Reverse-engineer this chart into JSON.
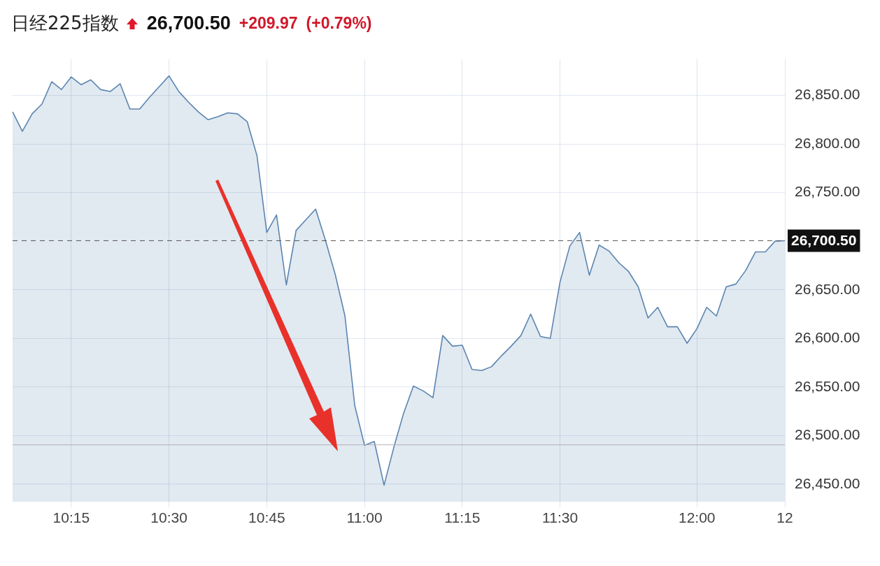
{
  "chart_data": {
    "type": "area",
    "title": "日经225指数",
    "annotations": [
      "26,700.50",
      "+209.97",
      "(+0.79%)"
    ],
    "categories": [
      null,
      null,
      null,
      null,
      null,
      null,
      "10:15",
      null,
      null,
      null,
      null,
      null,
      null,
      null,
      null,
      null,
      "10:30",
      null,
      null,
      null,
      null,
      null,
      null,
      null,
      null,
      null,
      "10:45",
      null,
      null,
      null,
      null,
      null,
      null,
      null,
      null,
      null,
      "11:00",
      null,
      null,
      null,
      null,
      null,
      null,
      null,
      null,
      null,
      "11:15",
      null,
      null,
      null,
      null,
      null,
      null,
      null,
      null,
      null,
      "11:30",
      null,
      null,
      null,
      null,
      null,
      null,
      null,
      null,
      null,
      null,
      null,
      null,
      null,
      "12:00",
      null,
      null,
      null,
      null,
      null,
      null,
      null,
      null,
      "12"
    ],
    "series": [
      {
        "color": "#5b85b0",
        "values": [
          26833,
          26813,
          26831,
          26841,
          26864,
          26856,
          26869,
          26861,
          26866,
          26856,
          26854,
          26862,
          26836,
          26836,
          26848,
          26859,
          26870,
          26854,
          26843,
          26833,
          26825,
          26828,
          26832,
          26831,
          26823,
          26788,
          26709,
          26727,
          26655,
          26711,
          26722,
          26733,
          26701,
          26666,
          26623,
          26531,
          26490,
          26494,
          26449,
          26488,
          26523,
          26551,
          26546,
          26539,
          26603,
          26592,
          26593,
          26568,
          26567,
          26571,
          26582,
          26592,
          26603,
          26625,
          26602,
          26600,
          26658,
          26695,
          26709,
          26665,
          26696,
          26690,
          26678,
          26669,
          26653,
          26621,
          26632,
          26612,
          26612,
          26595,
          26610,
          26632,
          26623,
          26653,
          26656,
          26670,
          26689,
          26689,
          26700,
          26700.5
        ]
      }
    ],
    "ylim": [
      26432,
      26887
    ],
    "yticks": [
      {
        "value": 26450,
        "label": "26,450.00"
      },
      {
        "value": 26500,
        "label": "26,500.00"
      },
      {
        "value": 26550,
        "label": "26,550.00"
      },
      {
        "value": 26600,
        "label": "26,600.00"
      },
      {
        "value": 26650,
        "label": "26,650.00"
      },
      {
        "value": 26750,
        "label": "26,750.00"
      },
      {
        "value": 26800,
        "label": "26,800.00"
      },
      {
        "value": 26850,
        "label": "26,850.00"
      }
    ],
    "ref_lines": [
      {
        "axis": "y",
        "value": 26700.5,
        "label": "26,700.50",
        "color": "#555555",
        "line_style": "dashed"
      },
      {
        "axis": "y",
        "value": 26490.53,
        "color": "#b8b0b8",
        "line_style": "solid"
      }
    ],
    "grid": true,
    "legend": false
  }
}
